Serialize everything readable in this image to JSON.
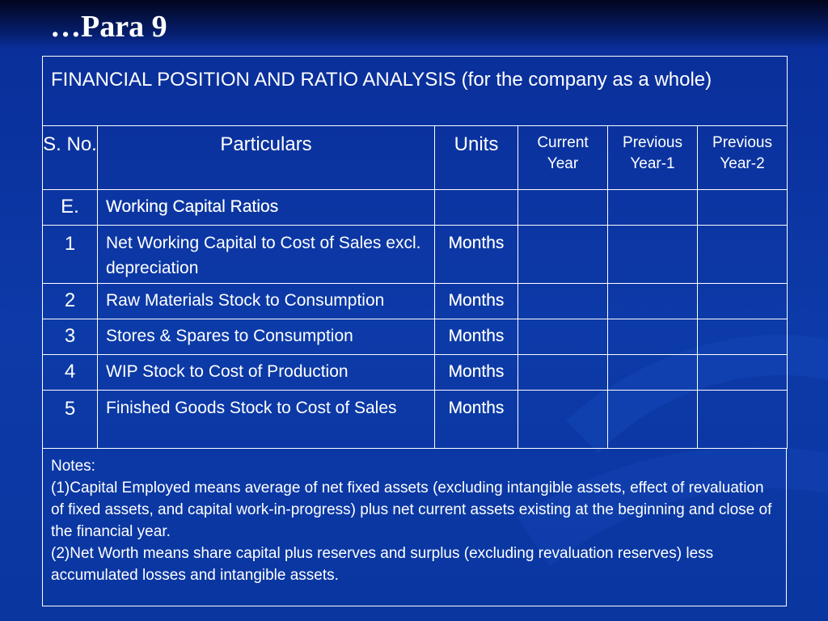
{
  "slide": {
    "title": "…Para 9"
  },
  "table": {
    "header_title": "FINANCIAL POSITION AND RATIO ANALYSIS (for the company as a whole)",
    "columns": [
      "S. No.",
      "Particulars",
      "Units",
      "Current Year",
      "Previous Year-1",
      "Previous Year-2"
    ],
    "section": {
      "sno": "E.",
      "label": "Working Capital Ratios"
    },
    "rows": [
      {
        "sno": "1",
        "particular": "Net Working Capital to Cost of Sales excl. depreciation",
        "unit": "Months"
      },
      {
        "sno": "2",
        "particular": "Raw Materials Stock to Consumption",
        "unit": "Months"
      },
      {
        "sno": "3",
        "particular": "Stores & Spares to Consumption",
        "unit": "Months"
      },
      {
        "sno": "4",
        "particular": "WIP Stock to Cost of Production",
        "unit": "Months"
      },
      {
        "sno": "5",
        "particular": "Finished Goods Stock to Cost of Sales",
        "unit": "Months"
      }
    ]
  },
  "notes": {
    "heading": "Notes:",
    "items": [
      {
        "marker": "(1)",
        "text": "Capital Employed means average of net fixed assets (excluding intangible assets, effect of revaluation of fixed assets, and capital work-in-progress) plus net current assets existing at the beginning and close of the financial year."
      },
      {
        "marker": "(2)",
        "text": "Net Worth means share capital plus reserves and surplus (excluding revaluation reserves) less accumulated losses and intangible assets."
      }
    ]
  }
}
